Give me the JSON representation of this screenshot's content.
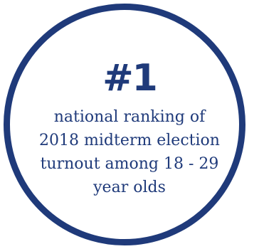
{
  "badge": {
    "headline": "#1",
    "lines": [
      "national ranking of",
      "2018 midterm election",
      "turnout among 18 - 29",
      "year olds"
    ],
    "color": "#1f3a7a"
  }
}
